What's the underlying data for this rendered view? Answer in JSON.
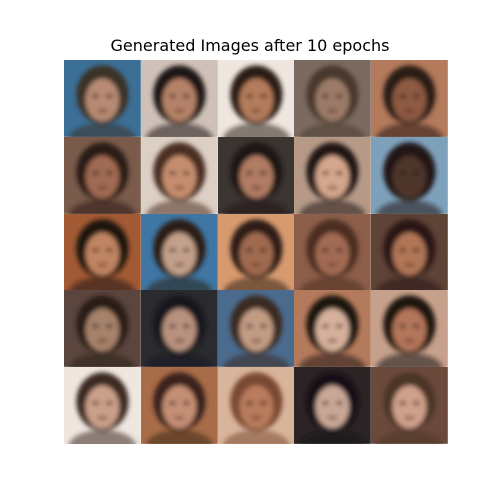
{
  "figure": {
    "title": "Generated Images after 10 epochs",
    "grid": {
      "rows": 5,
      "cols": 5
    }
  },
  "tiles": [
    {
      "bg": "#3c6f96",
      "hair": "#3b3027",
      "skin": "#b78a73"
    },
    {
      "bg": "#cfc1b8",
      "hair": "#1f1713",
      "skin": "#b58268"
    },
    {
      "bg": "#efe6df",
      "hair": "#2a1c16",
      "skin": "#b47b5c"
    },
    {
      "bg": "#7a6a60",
      "hair": "#4a382e",
      "skin": "#9c7a67"
    },
    {
      "bg": "#b37a5b",
      "hair": "#2a1a14",
      "skin": "#8d5a42"
    },
    {
      "bg": "#7a5b4b",
      "hair": "#2a1a14",
      "skin": "#a06a52"
    },
    {
      "bg": "#dccfc4",
      "hair": "#4a2f21",
      "skin": "#c68e6f"
    },
    {
      "bg": "#3b3532",
      "hair": "#1f1713",
      "skin": "#b07c63"
    },
    {
      "bg": "#b69a87",
      "hair": "#231915",
      "skin": "#d4a68d"
    },
    {
      "bg": "#7ea1bb",
      "hair": "#201716",
      "skin": "#4d352b"
    },
    {
      "bg": "#a15a34",
      "hair": "#1e1410",
      "skin": "#c08462"
    },
    {
      "bg": "#3f76a3",
      "hair": "#2a1c16",
      "skin": "#c3a08b"
    },
    {
      "bg": "#d79a6f",
      "hair": "#2e1e17",
      "skin": "#a06a50"
    },
    {
      "bg": "#8d5e49",
      "hair": "#4b2f22",
      "skin": "#a26a52"
    },
    {
      "bg": "#5e4337",
      "hair": "#2a1913",
      "skin": "#b07657"
    },
    {
      "bg": "#5b463f",
      "hair": "#2c1f19",
      "skin": "#a6826b"
    },
    {
      "bg": "#2a2b2f",
      "hair": "#17181c",
      "skin": "#b9927f"
    },
    {
      "bg": "#4b6b8e",
      "hair": "#3b2a22",
      "skin": "#c29b83"
    },
    {
      "bg": "#b37a5b",
      "hair": "#1b1310",
      "skin": "#d6b19b"
    },
    {
      "bg": "#c7a08b",
      "hair": "#1a1210",
      "skin": "#b2765a"
    },
    {
      "bg": "#efe6df",
      "hair": "#3b2a22",
      "skin": "#caa089"
    },
    {
      "bg": "#a86c48",
      "hair": "#3a241a",
      "skin": "#c48f74"
    },
    {
      "bg": "#d8b49b",
      "hair": "#7a4a32",
      "skin": "#b97c5d"
    },
    {
      "bg": "#2b2324",
      "hair": "#161012",
      "skin": "#c9a797"
    },
    {
      "bg": "#6b4a3c",
      "hair": "#4b3428",
      "skin": "#cfa08a"
    }
  ]
}
